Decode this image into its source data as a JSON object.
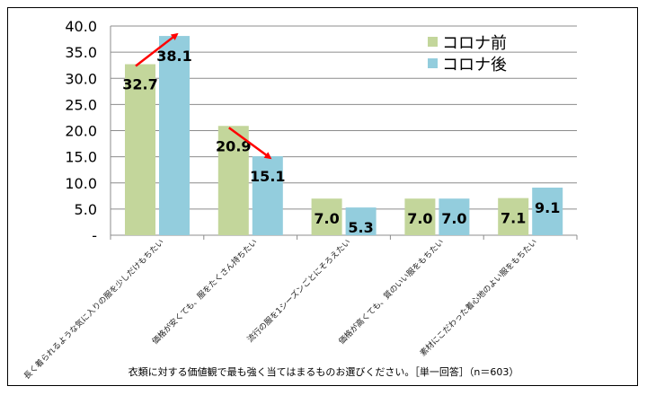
{
  "chart_data": {
    "type": "bar",
    "title": "",
    "xlabel": "衣類に対する価値観で最も強く当てはまるものお選びください。［単一回答］（n＝603）",
    "ylabel": "",
    "ylim": [
      0,
      40
    ],
    "yticks": [
      "-",
      "5.0",
      "10.0",
      "15.0",
      "20.0",
      "25.0",
      "30.0",
      "35.0",
      "40.0"
    ],
    "grid": true,
    "legend_position": "top-right",
    "categories": [
      "長く着られるような気に入りの服を少しだけもちたい",
      "価格が安くても、服をたくさん持ちたい",
      "流行の服を1シーズンごとにそろえたい",
      "価格が高くても、質のいい服をもちたい",
      "素材にこだわった着心地のよい服をもちたい"
    ],
    "series": [
      {
        "name": "コロナ前",
        "color": "#c3d69b",
        "values": [
          32.7,
          20.9,
          7.0,
          7.0,
          7.1
        ],
        "labels": [
          "32.7",
          "20.9",
          "7.0",
          "7.0",
          "7.1"
        ]
      },
      {
        "name": "コロナ後",
        "color": "#93cddd",
        "values": [
          38.1,
          15.1,
          5.3,
          7.0,
          9.1
        ],
        "labels": [
          "38.1",
          "15.1",
          "5.3",
          "7.0",
          "9.1"
        ]
      }
    ],
    "annotations": [
      {
        "type": "arrow",
        "color": "#ff0000",
        "from": [
          0,
          32.7
        ],
        "to": [
          0,
          38.1
        ],
        "direction": "up"
      },
      {
        "type": "arrow",
        "color": "#ff0000",
        "from": [
          1,
          20.9
        ],
        "to": [
          1,
          15.1
        ],
        "direction": "down"
      }
    ]
  }
}
